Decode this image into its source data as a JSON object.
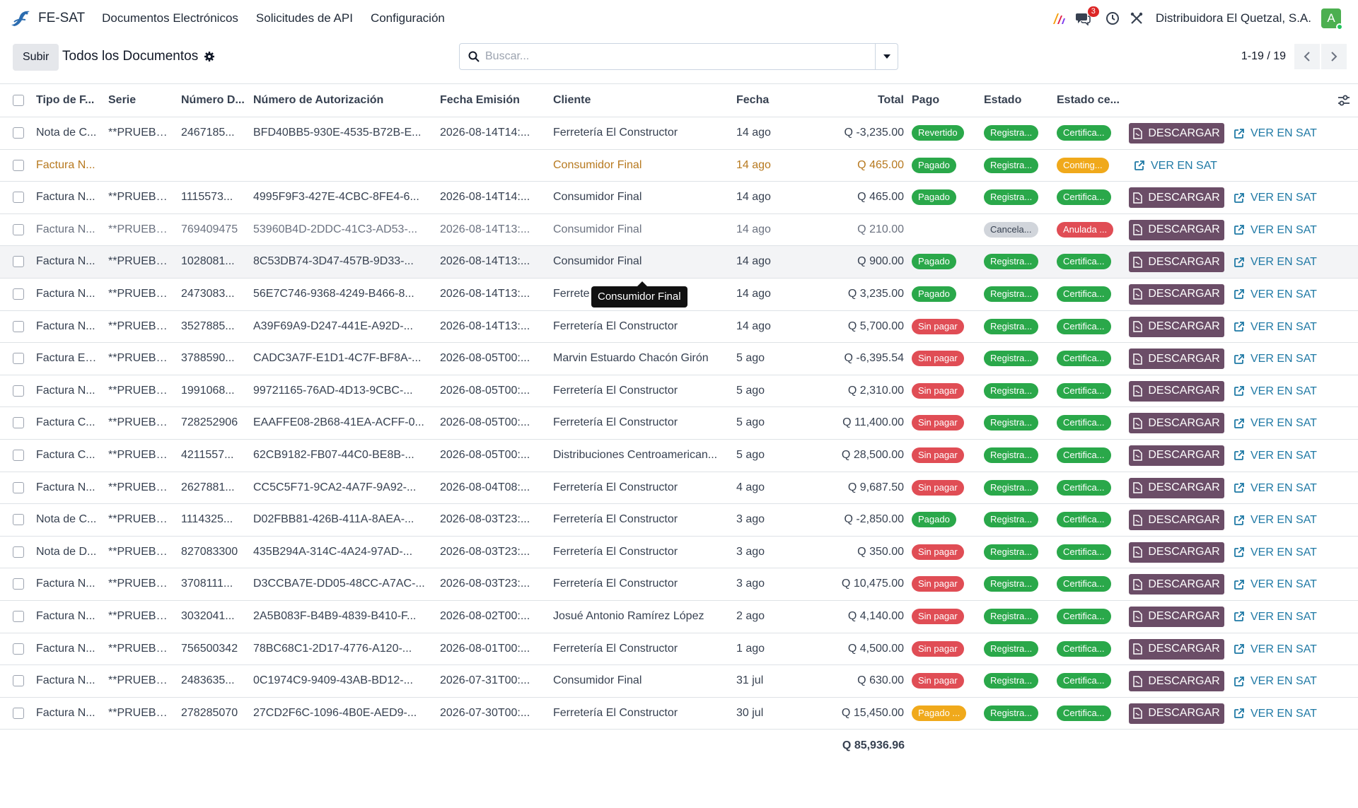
{
  "app": {
    "name": "FE-SAT"
  },
  "menu": [
    "Documentos Electrónicos",
    "Solicitudes de API",
    "Configuración"
  ],
  "navbar": {
    "chat_badge": "3",
    "company": "Distribuidora El Quetzal, S.A.",
    "avatar": "A"
  },
  "control": {
    "upload_label": "Subir",
    "title": "Todos los Documentos",
    "search_placeholder": "Buscar...",
    "pager": "1-19 / 19"
  },
  "columns": [
    "Tipo de F...",
    "Serie",
    "Número D...",
    "Número de Autorización",
    "Fecha Emisión",
    "Cliente",
    "Fecha",
    "Total",
    "Pago",
    "Estado",
    "Estado ce..."
  ],
  "buttons": {
    "download": "DESCARGAR",
    "view_sat": "VER EN SAT"
  },
  "colors": {
    "green": "#2aa84a",
    "red": "#e04d55",
    "gray": "#d1d5db",
    "orange": "#f0a91b",
    "download": "#6b4d67",
    "link": "#1f79a5"
  },
  "rows": [
    {
      "tipo": "Nota de C...",
      "serie": "**PRUEBA...",
      "numero": "2467185...",
      "auth": "BFD40BB5-930E-4535-B72B-E...",
      "fecha_emision": "2026-08-14T14:...",
      "cliente": "Ferretería El Constructor",
      "fecha": "14 ago",
      "total": "Q -3,235.00",
      "pago": "Revertido",
      "pago_color": "green",
      "estado": "Registra...",
      "estado_color": "green",
      "cert": "Certifica...",
      "cert_color": "green",
      "variant": ""
    },
    {
      "tipo": "Factura N...",
      "serie": "",
      "numero": "",
      "auth": "",
      "fecha_emision": "",
      "cliente": "Consumidor Final",
      "fecha": "14 ago",
      "total": "Q 465.00",
      "pago": "Pagado",
      "pago_color": "green",
      "estado": "Registra...",
      "estado_color": "green",
      "cert": "Conting...",
      "cert_color": "orange",
      "variant": "warn"
    },
    {
      "tipo": "Factura N...",
      "serie": "**PRUEBA...",
      "numero": "1115573...",
      "auth": "4995F9F3-427E-4CBC-8FE4-6...",
      "fecha_emision": "2026-08-14T14:...",
      "cliente": "Consumidor Final",
      "fecha": "14 ago",
      "total": "Q 465.00",
      "pago": "Pagado",
      "pago_color": "green",
      "estado": "Registra...",
      "estado_color": "green",
      "cert": "Certifica...",
      "cert_color": "green",
      "variant": ""
    },
    {
      "tipo": "Factura N...",
      "serie": "**PRUEBA...",
      "numero": "769409475",
      "auth": "53960B4D-2DDC-41C3-AD53-...",
      "fecha_emision": "2026-08-14T13:...",
      "cliente": "Consumidor Final",
      "fecha": "14 ago",
      "total": "Q 210.00",
      "pago": "",
      "pago_color": "",
      "estado": "Cancela...",
      "estado_color": "gray",
      "cert": "Anulada ...",
      "cert_color": "red",
      "variant": "muted"
    },
    {
      "tipo": "Factura N...",
      "serie": "**PRUEBA...",
      "numero": "1028081...",
      "auth": "8C53DB74-3D47-457B-9D33-...",
      "fecha_emision": "2026-08-14T13:...",
      "cliente": "Consumidor Final",
      "fecha": "14 ago",
      "total": "Q 900.00",
      "pago": "Pagado",
      "pago_color": "green",
      "estado": "Registra...",
      "estado_color": "green",
      "cert": "Certifica...",
      "cert_color": "green",
      "variant": "hover"
    },
    {
      "tipo": "Factura N...",
      "serie": "**PRUEBA...",
      "numero": "2473083...",
      "auth": "56E7C746-9368-4249-B466-8...",
      "fecha_emision": "2026-08-14T13:...",
      "cliente": "Ferrete",
      "fecha": "14 ago",
      "total": "Q 3,235.00",
      "pago": "Pagado",
      "pago_color": "green",
      "estado": "Registra...",
      "estado_color": "green",
      "cert": "Certifica...",
      "cert_color": "green",
      "variant": ""
    },
    {
      "tipo": "Factura N...",
      "serie": "**PRUEBA...",
      "numero": "3527885...",
      "auth": "A39F69A9-D247-441E-A92D-...",
      "fecha_emision": "2026-08-14T13:...",
      "cliente": "Ferretería El Constructor",
      "fecha": "14 ago",
      "total": "Q 5,700.00",
      "pago": "Sin pagar",
      "pago_color": "red",
      "estado": "Registra...",
      "estado_color": "green",
      "cert": "Certifica...",
      "cert_color": "green",
      "variant": ""
    },
    {
      "tipo": "Factura Es...",
      "serie": "**PRUEBA...",
      "numero": "3788590...",
      "auth": "CADC3A7F-E1D1-4C7F-BF8A-...",
      "fecha_emision": "2026-08-05T00:...",
      "cliente": "Marvin Estuardo Chacón Girón",
      "fecha": "5 ago",
      "total": "Q -6,395.54",
      "pago": "Sin pagar",
      "pago_color": "red",
      "estado": "Registra...",
      "estado_color": "green",
      "cert": "Certifica...",
      "cert_color": "green",
      "variant": ""
    },
    {
      "tipo": "Factura N...",
      "serie": "**PRUEBA...",
      "numero": "1991068...",
      "auth": "99721165-76AD-4D13-9CBC-...",
      "fecha_emision": "2026-08-05T00:...",
      "cliente": "Ferretería El Constructor",
      "fecha": "5 ago",
      "total": "Q 2,310.00",
      "pago": "Sin pagar",
      "pago_color": "red",
      "estado": "Registra...",
      "estado_color": "green",
      "cert": "Certifica...",
      "cert_color": "green",
      "variant": ""
    },
    {
      "tipo": "Factura C...",
      "serie": "**PRUEBA...",
      "numero": "728252906",
      "auth": "EAAFFE08-2B68-41EA-ACFF-0...",
      "fecha_emision": "2026-08-05T00:...",
      "cliente": "Ferretería El Constructor",
      "fecha": "5 ago",
      "total": "Q 11,400.00",
      "pago": "Sin pagar",
      "pago_color": "red",
      "estado": "Registra...",
      "estado_color": "green",
      "cert": "Certifica...",
      "cert_color": "green",
      "variant": ""
    },
    {
      "tipo": "Factura C...",
      "serie": "**PRUEBA...",
      "numero": "4211557...",
      "auth": "62CB9182-FB07-44C0-BE8B-...",
      "fecha_emision": "2026-08-05T00:...",
      "cliente": "Distribuciones Centroamerican...",
      "fecha": "5 ago",
      "total": "Q 28,500.00",
      "pago": "Sin pagar",
      "pago_color": "red",
      "estado": "Registra...",
      "estado_color": "green",
      "cert": "Certifica...",
      "cert_color": "green",
      "variant": ""
    },
    {
      "tipo": "Factura N...",
      "serie": "**PRUEBA...",
      "numero": "2627881...",
      "auth": "CC5C5F71-9CA2-4A7F-9A92-...",
      "fecha_emision": "2026-08-04T08:...",
      "cliente": "Ferretería El Constructor",
      "fecha": "4 ago",
      "total": "Q 9,687.50",
      "pago": "Sin pagar",
      "pago_color": "red",
      "estado": "Registra...",
      "estado_color": "green",
      "cert": "Certifica...",
      "cert_color": "green",
      "variant": ""
    },
    {
      "tipo": "Nota de C...",
      "serie": "**PRUEBA...",
      "numero": "1114325...",
      "auth": "D02FBB81-426B-411A-8AEA-...",
      "fecha_emision": "2026-08-03T23:...",
      "cliente": "Ferretería El Constructor",
      "fecha": "3 ago",
      "total": "Q -2,850.00",
      "pago": "Pagado",
      "pago_color": "green",
      "estado": "Registra...",
      "estado_color": "green",
      "cert": "Certifica...",
      "cert_color": "green",
      "variant": ""
    },
    {
      "tipo": "Nota de D...",
      "serie": "**PRUEBA...",
      "numero": "827083300",
      "auth": "435B294A-314C-4A24-97AD-...",
      "fecha_emision": "2026-08-03T23:...",
      "cliente": "Ferretería El Constructor",
      "fecha": "3 ago",
      "total": "Q 350.00",
      "pago": "Sin pagar",
      "pago_color": "red",
      "estado": "Registra...",
      "estado_color": "green",
      "cert": "Certifica...",
      "cert_color": "green",
      "variant": ""
    },
    {
      "tipo": "Factura N...",
      "serie": "**PRUEBA...",
      "numero": "3708111...",
      "auth": "D3CCBA7E-DD05-48CC-A7AC-...",
      "fecha_emision": "2026-08-03T23:...",
      "cliente": "Ferretería El Constructor",
      "fecha": "3 ago",
      "total": "Q 10,475.00",
      "pago": "Sin pagar",
      "pago_color": "red",
      "estado": "Registra...",
      "estado_color": "green",
      "cert": "Certifica...",
      "cert_color": "green",
      "variant": ""
    },
    {
      "tipo": "Factura N...",
      "serie": "**PRUEBA...",
      "numero": "3032041...",
      "auth": "2A5B083F-B4B9-4839-B410-F...",
      "fecha_emision": "2026-08-02T00:...",
      "cliente": "Josué Antonio Ramírez López",
      "fecha": "2 ago",
      "total": "Q 4,140.00",
      "pago": "Sin pagar",
      "pago_color": "red",
      "estado": "Registra...",
      "estado_color": "green",
      "cert": "Certifica...",
      "cert_color": "green",
      "variant": ""
    },
    {
      "tipo": "Factura N...",
      "serie": "**PRUEBA...",
      "numero": "756500342",
      "auth": "78BC68C1-2D17-4776-A120-...",
      "fecha_emision": "2026-08-01T00:...",
      "cliente": "Ferretería El Constructor",
      "fecha": "1 ago",
      "total": "Q 4,500.00",
      "pago": "Sin pagar",
      "pago_color": "red",
      "estado": "Registra...",
      "estado_color": "green",
      "cert": "Certifica...",
      "cert_color": "green",
      "variant": ""
    },
    {
      "tipo": "Factura N...",
      "serie": "**PRUEBA...",
      "numero": "2483635...",
      "auth": "0C1974C9-9409-43AB-BD12-...",
      "fecha_emision": "2026-07-31T00:...",
      "cliente": "Consumidor Final",
      "fecha": "31 jul",
      "total": "Q 630.00",
      "pago": "Sin pagar",
      "pago_color": "red",
      "estado": "Registra...",
      "estado_color": "green",
      "cert": "Certifica...",
      "cert_color": "green",
      "variant": ""
    },
    {
      "tipo": "Factura N...",
      "serie": "**PRUEBA...",
      "numero": "278285070",
      "auth": "27CD2F6C-1096-4B0E-AED9-...",
      "fecha_emision": "2026-07-30T00:...",
      "cliente": "Ferretería El Constructor",
      "fecha": "30 jul",
      "total": "Q 15,450.00",
      "pago": "Pagado ...",
      "pago_color": "orange",
      "estado": "Registra...",
      "estado_color": "green",
      "cert": "Certifica...",
      "cert_color": "green",
      "variant": ""
    }
  ],
  "footer_total": "Q 85,936.96",
  "tooltip": "Consumidor Final"
}
